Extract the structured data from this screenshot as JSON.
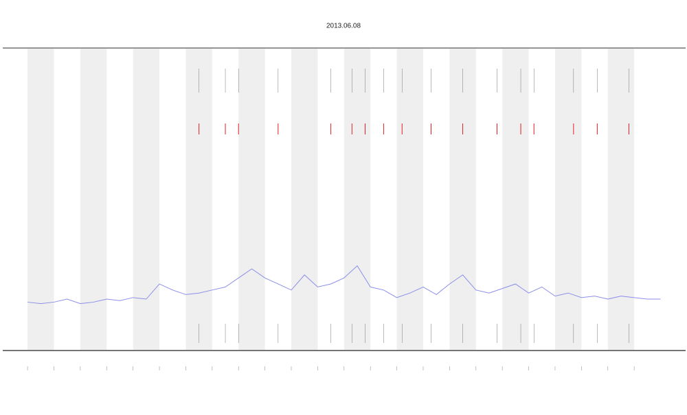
{
  "chart_data": {
    "type": "line",
    "title": "2013.06.08",
    "x": [
      0,
      0.5,
      1,
      1.5,
      2,
      2.5,
      3,
      3.5,
      4,
      4.5,
      5,
      5.5,
      6,
      6.5,
      7,
      7.5,
      8,
      8.5,
      9,
      9.5,
      10,
      10.5,
      11,
      11.5,
      12,
      12.5,
      13,
      13.5,
      14,
      14.5,
      15,
      15.5,
      16,
      16.5,
      17,
      17.5,
      18,
      18.5,
      19,
      19.5,
      20,
      20.5,
      21,
      21.5,
      22,
      22.5,
      23,
      23.5,
      24
    ],
    "series": [
      {
        "color": "#8a8ee8",
        "values": [
          16,
          15.5,
          16,
          17,
          15.5,
          16,
          17,
          16.5,
          17.5,
          17,
          22,
          20,
          18.5,
          19,
          20,
          21,
          24,
          27,
          24,
          22,
          20,
          25,
          21,
          22,
          24,
          28,
          21,
          20,
          17.5,
          19,
          21,
          18.5,
          22,
          25,
          20,
          19,
          20.5,
          22,
          19,
          21,
          18,
          19,
          17.5,
          18,
          17,
          18,
          17.5,
          17,
          17
        ]
      }
    ],
    "events": [
      6.5,
      7.5,
      8,
      9.5,
      11.5,
      12.3,
      12.8,
      13.5,
      14.2,
      15.3,
      16.5,
      17.8,
      18.7,
      19.2,
      20.7,
      21.6,
      22.8
    ],
    "event_color": "#e02020",
    "xlim": [
      -0.94,
      24.95
    ],
    "ylim": [
      0,
      100
    ],
    "xticks": [
      0,
      1,
      2,
      3,
      4,
      5,
      6,
      7,
      8,
      9,
      10,
      11,
      12,
      13,
      14,
      15,
      16,
      17,
      18,
      19,
      20,
      21,
      22,
      23
    ],
    "shading": true
  }
}
